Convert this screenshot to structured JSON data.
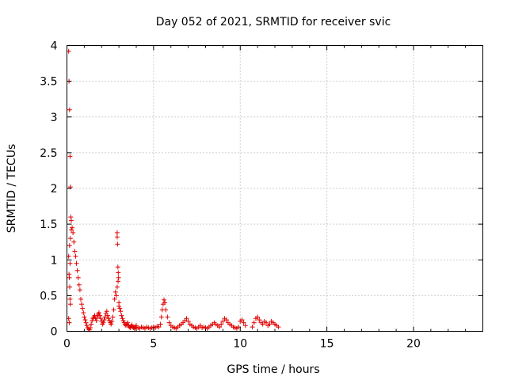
{
  "chart_data": {
    "type": "scatter",
    "title": "Day 052 of 2021, SRMTID for receiver svic",
    "xlabel": "GPS time / hours",
    "ylabel": "SRMTID / TECUs",
    "xlim": [
      0,
      24
    ],
    "ylim": [
      0,
      4
    ],
    "grid": true,
    "x_ticks": [
      0,
      5,
      10,
      15,
      20
    ],
    "y_ticks": [
      0,
      0.5,
      1,
      1.5,
      2,
      2.5,
      3,
      3.5,
      4
    ],
    "x_tick_labels": [
      "0",
      "5",
      "10",
      "15",
      "20"
    ],
    "y_tick_labels": [
      "0",
      "0.5",
      "1",
      "1.5",
      "2",
      "2.5",
      "3",
      "3.5",
      "4"
    ],
    "marker": "+",
    "color": "#e00000",
    "series": [
      {
        "name": "SRMTID",
        "x": [
          0.1,
          0.12,
          0.15,
          0.18,
          0.2,
          0.22,
          0.25,
          0.12,
          0.14,
          0.16,
          0.18,
          0.2,
          0.1,
          0.14,
          0.18,
          0.1,
          0.15,
          0.2,
          0.25,
          0.3,
          0.35,
          0.4,
          0.45,
          0.5,
          0.55,
          0.6,
          0.65,
          0.7,
          0.75,
          0.8,
          0.85,
          0.9,
          0.95,
          1.0,
          1.05,
          1.1,
          1.15,
          1.2,
          1.25,
          1.3,
          1.35,
          1.4,
          1.45,
          1.5,
          1.55,
          1.6,
          1.65,
          1.7,
          1.75,
          1.8,
          1.85,
          1.9,
          1.95,
          2.0,
          2.05,
          2.1,
          2.15,
          2.2,
          2.25,
          2.3,
          2.35,
          2.4,
          2.45,
          2.5,
          2.55,
          2.6,
          2.65,
          2.7,
          2.75,
          2.8,
          2.85,
          2.9,
          2.95,
          2.9,
          2.9,
          2.92,
          2.94,
          2.96,
          2.98,
          3.0,
          3.0,
          3.05,
          3.1,
          3.15,
          3.2,
          3.25,
          3.3,
          3.35,
          3.4,
          3.45,
          3.5,
          3.55,
          3.6,
          3.65,
          3.7,
          3.75,
          3.8,
          3.85,
          3.9,
          3.95,
          4.0,
          4.1,
          4.2,
          4.3,
          4.4,
          4.5,
          4.6,
          4.7,
          4.8,
          4.9,
          5.0,
          5.1,
          5.2,
          5.3,
          5.4,
          5.45,
          5.5,
          5.55,
          5.6,
          5.65,
          5.7,
          5.8,
          5.9,
          6.0,
          6.1,
          6.2,
          6.3,
          6.4,
          6.5,
          6.6,
          6.7,
          6.8,
          6.9,
          7.0,
          7.1,
          7.2,
          7.3,
          7.4,
          7.5,
          7.6,
          7.7,
          7.8,
          7.9,
          8.0,
          8.1,
          8.2,
          8.3,
          8.4,
          8.5,
          8.6,
          8.7,
          8.8,
          8.9,
          9.0,
          9.1,
          9.2,
          9.3,
          9.4,
          9.5,
          9.6,
          9.7,
          9.8,
          9.9,
          10.0,
          10.1,
          10.2,
          10.3,
          10.7,
          10.8,
          10.9,
          11.0,
          11.1,
          11.2,
          11.3,
          11.4,
          11.5,
          11.6,
          11.7,
          11.8,
          11.9,
          12.0,
          12.1,
          12.2
        ],
        "y": [
          3.92,
          3.5,
          3.1,
          2.45,
          2.02,
          1.6,
          1.55,
          0.8,
          0.75,
          0.62,
          0.45,
          0.38,
          0.18,
          0.12,
          0.95,
          1.05,
          1.2,
          1.3,
          1.42,
          1.45,
          1.38,
          1.25,
          1.12,
          1.05,
          0.95,
          0.85,
          0.75,
          0.65,
          0.58,
          0.45,
          0.38,
          0.32,
          0.26,
          0.2,
          0.16,
          0.12,
          0.08,
          0.05,
          0.03,
          0.02,
          0.05,
          0.1,
          0.15,
          0.18,
          0.2,
          0.22,
          0.18,
          0.15,
          0.2,
          0.24,
          0.26,
          0.22,
          0.18,
          0.14,
          0.1,
          0.12,
          0.16,
          0.2,
          0.25,
          0.28,
          0.22,
          0.18,
          0.15,
          0.12,
          0.1,
          0.14,
          0.2,
          0.3,
          0.45,
          0.55,
          0.5,
          0.62,
          0.7,
          1.38,
          1.32,
          1.22,
          0.9,
          0.82,
          0.75,
          0.4,
          0.35,
          0.32,
          0.28,
          0.22,
          0.18,
          0.15,
          0.12,
          0.1,
          0.08,
          0.1,
          0.12,
          0.08,
          0.06,
          0.05,
          0.07,
          0.09,
          0.06,
          0.05,
          0.04,
          0.06,
          0.08,
          0.05,
          0.04,
          0.06,
          0.05,
          0.04,
          0.06,
          0.05,
          0.04,
          0.05,
          0.06,
          0.05,
          0.07,
          0.06,
          0.1,
          0.2,
          0.3,
          0.38,
          0.44,
          0.4,
          0.3,
          0.2,
          0.12,
          0.08,
          0.06,
          0.05,
          0.04,
          0.06,
          0.08,
          0.1,
          0.12,
          0.15,
          0.18,
          0.14,
          0.1,
          0.08,
          0.06,
          0.05,
          0.04,
          0.06,
          0.08,
          0.05,
          0.06,
          0.05,
          0.04,
          0.06,
          0.08,
          0.1,
          0.12,
          0.1,
          0.08,
          0.06,
          0.1,
          0.14,
          0.18,
          0.16,
          0.12,
          0.1,
          0.08,
          0.06,
          0.05,
          0.04,
          0.06,
          0.14,
          0.16,
          0.12,
          0.08,
          0.06,
          0.12,
          0.18,
          0.2,
          0.16,
          0.12,
          0.1,
          0.14,
          0.12,
          0.08,
          0.1,
          0.14,
          0.12,
          0.1,
          0.08,
          0.06
        ]
      }
    ]
  }
}
